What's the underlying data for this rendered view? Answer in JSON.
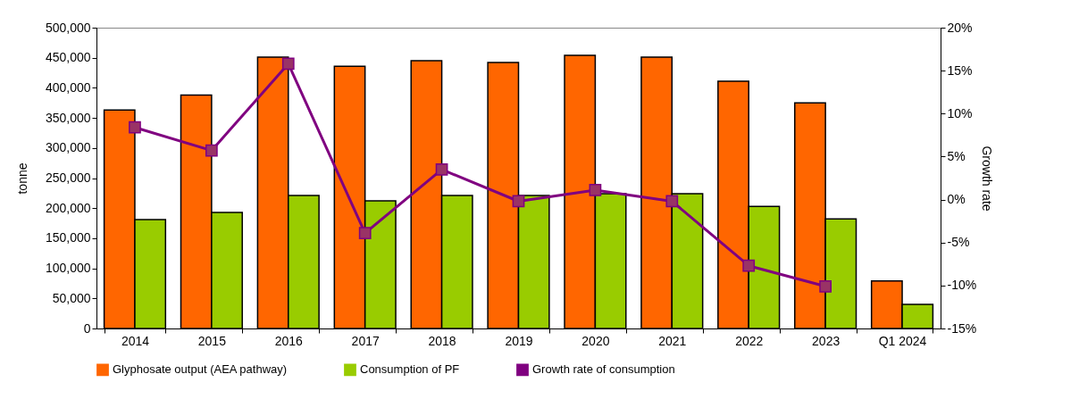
{
  "chart_data": {
    "type": "bar",
    "categories": [
      "2014",
      "2015",
      "2016",
      "2017",
      "2018",
      "2019",
      "2020",
      "2021",
      "2022",
      "2023",
      "Q1 2024"
    ],
    "ylabel": "tonne",
    "y2label": "Growth rate",
    "series": [
      {
        "name": "Glyphosate output (AEA pathway)",
        "color": "#ff6600",
        "values": [
          363000,
          388000,
          451000,
          436000,
          445000,
          442000,
          454000,
          451000,
          411000,
          375000,
          79000
        ]
      },
      {
        "name": "Consumption of PF",
        "color": "#99cc00",
        "values": [
          181000,
          193000,
          221000,
          212000,
          221000,
          221000,
          224000,
          224000,
          203000,
          182000,
          40000
        ]
      },
      {
        "name": "Growth rate of consumption",
        "type": "line",
        "axis": "y2",
        "color": "#800080",
        "marker": "square",
        "values": [
          8.4,
          5.7,
          15.8,
          -3.9,
          3.5,
          -0.2,
          1.1,
          -0.2,
          -7.7,
          -10.1,
          null
        ]
      }
    ],
    "ylim": [
      0,
      500000
    ],
    "yticks": [
      {
        "value": 0,
        "label": "0"
      },
      {
        "value": 50000,
        "label": "50,000"
      },
      {
        "value": 100000,
        "label": "100,000"
      },
      {
        "value": 150000,
        "label": "150,000"
      },
      {
        "value": 200000,
        "label": "200,000"
      },
      {
        "value": 250000,
        "label": "250,000"
      },
      {
        "value": 300000,
        "label": "300,000"
      },
      {
        "value": 350000,
        "label": "350,000"
      },
      {
        "value": 400000,
        "label": "400,000"
      },
      {
        "value": 450000,
        "label": "450,000"
      },
      {
        "value": 500000,
        "label": "500,000"
      }
    ],
    "y2lim": [
      -15,
      20
    ],
    "y2ticks": [
      {
        "value": -15,
        "label": "-15%"
      },
      {
        "value": -10,
        "label": "-10%"
      },
      {
        "value": -5,
        "label": "-5%"
      },
      {
        "value": 0,
        "label": "0%"
      },
      {
        "value": 5,
        "label": "5%"
      },
      {
        "value": 10,
        "label": "10%"
      },
      {
        "value": 15,
        "label": "15%"
      },
      {
        "value": 20,
        "label": "20%"
      }
    ],
    "legend": "bottom",
    "grid": false
  }
}
